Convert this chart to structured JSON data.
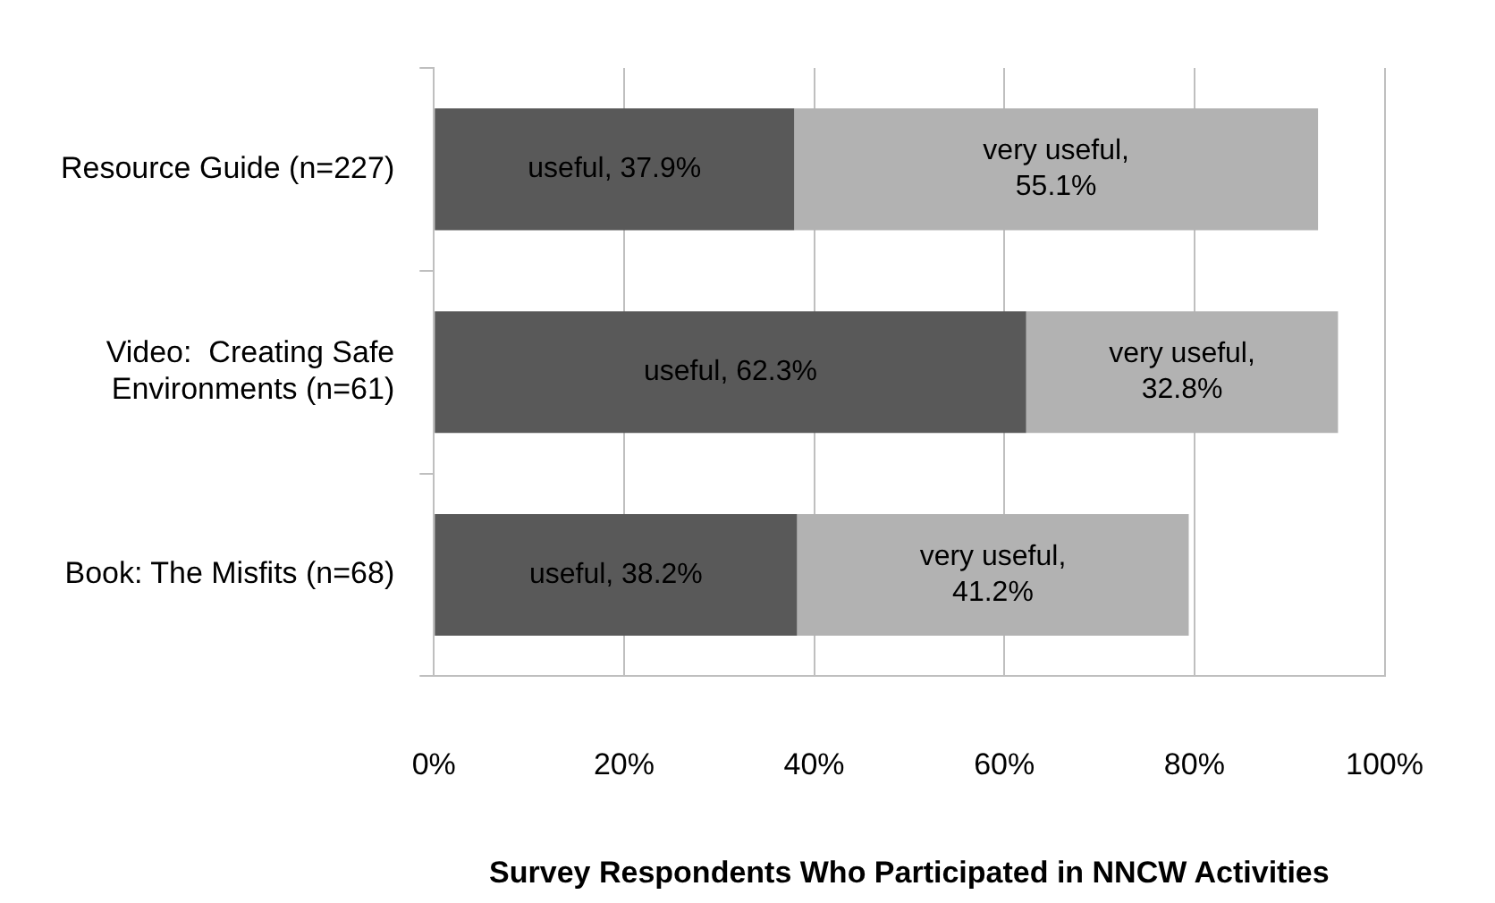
{
  "chart_data": {
    "type": "bar",
    "orientation": "horizontal",
    "stacked": true,
    "xlabel": "Survey Respondents Who Participated in NNCW Activities",
    "categories": [
      "Resource Guide (n=227)",
      "Video:  Creating Safe Environments (n=61)",
      "Book: The Misfits (n=68)"
    ],
    "series": [
      {
        "name": "useful",
        "color": "#595959",
        "values": [
          37.9,
          62.3,
          38.2
        ],
        "value_labels": [
          ", 37.9%",
          ", 62.3%",
          ", 38.2%"
        ]
      },
      {
        "name": "very useful",
        "color": "#b2b2b2",
        "values": [
          55.1,
          32.8,
          41.2
        ],
        "value_labels": [
          ",\n55.1%",
          ",\n32.8%",
          ",\n41.2%"
        ]
      }
    ],
    "xlim": [
      0,
      100
    ],
    "xticks": [
      {
        "value": 0,
        "label": "0%"
      },
      {
        "value": 20,
        "label": "20%"
      },
      {
        "value": 40,
        "label": "40%"
      },
      {
        "value": 60,
        "label": "60%"
      },
      {
        "value": 80,
        "label": "80%"
      },
      {
        "value": 100,
        "label": "100%"
      }
    ],
    "grid": "x",
    "legend": false
  }
}
